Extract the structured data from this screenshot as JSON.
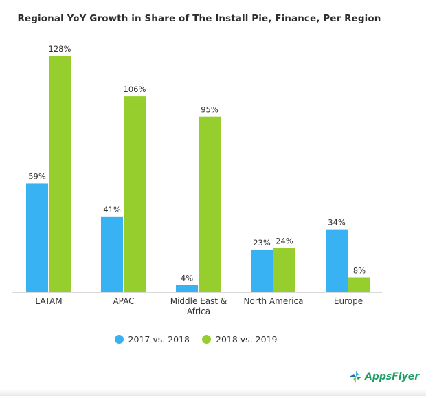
{
  "chart_data": {
    "type": "bar",
    "title": "Regional YoY Growth in Share of The Install Pie, Finance, Per Region",
    "categories": [
      [
        "LATAM"
      ],
      [
        "APAC"
      ],
      [
        "Middle East &",
        "Africa"
      ],
      [
        "North America"
      ],
      [
        "Europe"
      ]
    ],
    "series": [
      {
        "name": "2017 vs. 2018",
        "values": [
          59,
          41,
          4,
          23,
          34
        ],
        "labels": [
          "59%",
          "41%",
          "4%",
          "23%",
          "34%"
        ],
        "color": "#38b2f2"
      },
      {
        "name": "2018 vs. 2019",
        "values": [
          128,
          106,
          95,
          24,
          8
        ],
        "labels": [
          "128%",
          "106%",
          "95%",
          "24%",
          "8%"
        ],
        "color": "#96cf2d"
      }
    ],
    "ylim": [
      0,
      128
    ],
    "grid": false,
    "legend_position": "bottom"
  },
  "logo": {
    "text": "AppsFlyer"
  }
}
